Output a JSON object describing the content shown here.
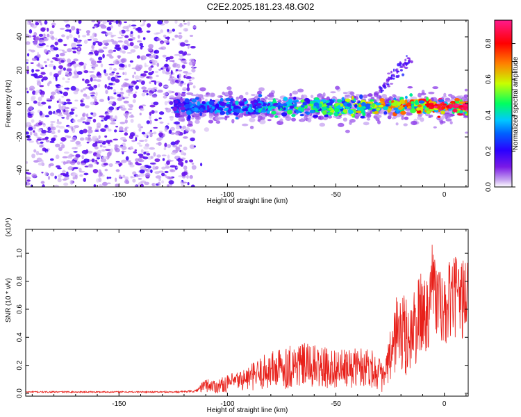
{
  "title": "C2E2.2025.181.23.48.G02",
  "chart_data": [
    {
      "type": "heatmap",
      "xlabel": "Height of straight line (km)",
      "ylabel": "Frequency (Hz)",
      "xlim": [
        -193,
        11
      ],
      "ylim": [
        -50,
        50
      ],
      "xticks": [
        -150,
        -100,
        -50,
        0
      ],
      "xtick_labels": [
        "-150",
        "-100",
        "-50",
        "0"
      ],
      "yticks": [
        -40,
        -20,
        0,
        20,
        40
      ],
      "ytick_labels": [
        "-40",
        "-20",
        "0",
        "20",
        "40"
      ],
      "colorbar": {
        "label": "Normalized spectral amplitude",
        "range": [
          0,
          0.93
        ],
        "ticks": [
          0.0,
          0.2,
          0.4,
          0.6,
          0.8
        ],
        "tick_labels": [
          "0.0",
          "0.2",
          "0.4",
          "0.6",
          "0.8"
        ],
        "colormap": [
          "#ffffff",
          "#c8a8f0",
          "#7a1ae6",
          "#2a00ff",
          "#00c8ff",
          "#00ff60",
          "#c8ff00",
          "#ff8000",
          "#ff0000",
          "#ff1a8c"
        ]
      },
      "features": [
        {
          "name": "noise",
          "x_range": [
            -193,
            -115
          ],
          "y_range": [
            -50,
            50
          ],
          "amplitude": 0.15
        },
        {
          "name": "signal-band",
          "x_range": [
            -125,
            11
          ],
          "center_y": -2,
          "half_width": 4,
          "amplitude_start": 0.3,
          "amplitude_end": 0.9
        },
        {
          "name": "diagonal-branch",
          "x_range": [
            -30,
            -15
          ],
          "y_range": [
            8,
            28
          ],
          "amplitude": 0.2
        }
      ],
      "grid": false
    },
    {
      "type": "line",
      "xlabel": "Height of straight line (km)",
      "ylabel": "SNR (10 * v/v)",
      "y_multiplier": "(x10⁴)",
      "xlim": [
        -193,
        11
      ],
      "ylim": [
        -0.02,
        1.17
      ],
      "xticks": [
        -150,
        -100,
        -50,
        0
      ],
      "xtick_labels": [
        "-150",
        "-100",
        "-50",
        "0"
      ],
      "yticks": [
        0.0,
        0.2,
        0.4,
        0.6,
        0.8,
        1.0
      ],
      "ytick_labels": [
        "0.0",
        "0.2",
        "0.4",
        "0.6",
        "0.8",
        "1.0"
      ],
      "series": [
        {
          "color": "#e8201a",
          "x": [
            -193,
            -175,
            -150,
            -125,
            -115,
            -110,
            -105,
            -100,
            -95,
            -90,
            -85,
            -80,
            -75,
            -70,
            -65,
            -60,
            -55,
            -50,
            -45,
            -40,
            -35,
            -30,
            -28,
            -25,
            -22,
            -20,
            -18,
            -15,
            -12,
            -10,
            -8,
            -6,
            -4,
            -2,
            0,
            2,
            4,
            6,
            8,
            10,
            11
          ],
          "y": [
            0.01,
            0.01,
            0.01,
            0.01,
            0.015,
            0.06,
            0.05,
            0.07,
            0.09,
            0.11,
            0.14,
            0.17,
            0.18,
            0.2,
            0.2,
            0.19,
            0.18,
            0.18,
            0.17,
            0.19,
            0.2,
            0.14,
            0.1,
            0.24,
            0.45,
            0.42,
            0.4,
            0.42,
            0.52,
            0.58,
            0.55,
            0.86,
            0.7,
            0.62,
            0.55,
            0.64,
            0.7,
            0.67,
            0.68,
            0.7,
            0.68
          ],
          "amplitude": [
            0.005,
            0.005,
            0.005,
            0.005,
            0.008,
            0.05,
            0.05,
            0.06,
            0.07,
            0.09,
            0.12,
            0.14,
            0.15,
            0.17,
            0.16,
            0.16,
            0.15,
            0.14,
            0.14,
            0.14,
            0.15,
            0.12,
            0.1,
            0.2,
            0.28,
            0.3,
            0.3,
            0.28,
            0.3,
            0.32,
            0.34,
            0.3,
            0.3,
            0.28,
            0.25,
            0.3,
            0.28,
            0.3,
            0.3,
            0.3,
            0.3
          ]
        }
      ],
      "grid": false
    }
  ]
}
